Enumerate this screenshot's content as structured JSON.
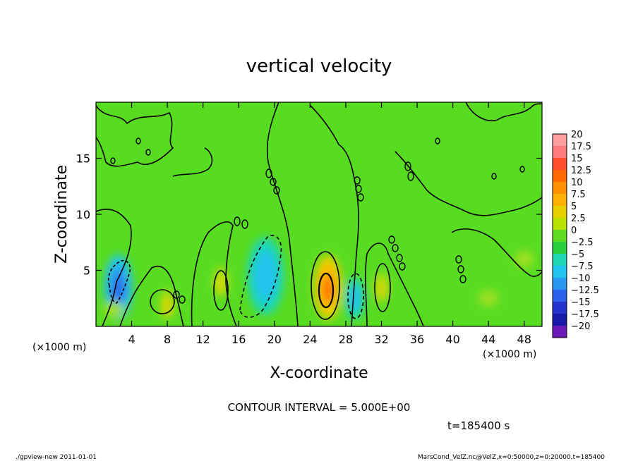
{
  "chart_data": {
    "type": "heatmap",
    "title": "vertical velocity",
    "xlabel": "X-coordinate",
    "ylabel": "Z-coordinate",
    "x_unit": "(×1000 m)",
    "y_unit": "(×1000 m)",
    "xlim": [
      0,
      50
    ],
    "ylim": [
      0,
      20
    ],
    "x_ticks": [
      4,
      8,
      12,
      16,
      20,
      24,
      28,
      32,
      36,
      40,
      44,
      48
    ],
    "y_ticks": [
      5,
      10,
      15
    ],
    "colorbar": {
      "labels": [
        "20",
        "17.5",
        "15",
        "12.5",
        "10",
        "7.5",
        "5",
        "2.5",
        "0",
        "−2.5",
        "−5",
        "−7.5",
        "−10",
        "−12.5",
        "−15",
        "−17.5",
        "−20"
      ],
      "colors": [
        "#ff9e9e",
        "#ff7a7a",
        "#ff4d2e",
        "#ff6a00",
        "#ff9000",
        "#ffb000",
        "#e6d000",
        "#b8e000",
        "#60dc20",
        "#28d040",
        "#1fd6b4",
        "#20c4ec",
        "#2a98f0",
        "#2a60ea",
        "#2432d0",
        "#1a1aa8",
        "#6a18b8"
      ]
    },
    "features": [
      {
        "kind": "updraft",
        "x": 26,
        "z": 3.5,
        "max": 12.5
      },
      {
        "kind": "updraft",
        "x": 8,
        "z": 2.0,
        "max": 5
      },
      {
        "kind": "updraft",
        "x": 14,
        "z": 4.0,
        "max": 5
      },
      {
        "kind": "updraft",
        "x": 32,
        "z": 3.5,
        "max": 5
      },
      {
        "kind": "downdraft",
        "x": 19,
        "z": 4.5,
        "min": -7.5
      },
      {
        "kind": "downdraft",
        "x": 29,
        "z": 2.5,
        "min": -7.5
      },
      {
        "kind": "downdraft",
        "x": 2.5,
        "z": 3.5,
        "min": -12.5
      }
    ],
    "contour_interval_label": "CONTOUR INTERVAL = 5.000E+00",
    "time_label": "t=185400 s"
  },
  "footer": {
    "left": "./gpview-new  2011-01-01",
    "right": "MarsCond_VelZ.nc@VelZ,x=0:50000,z=0:20000,t=185400"
  }
}
